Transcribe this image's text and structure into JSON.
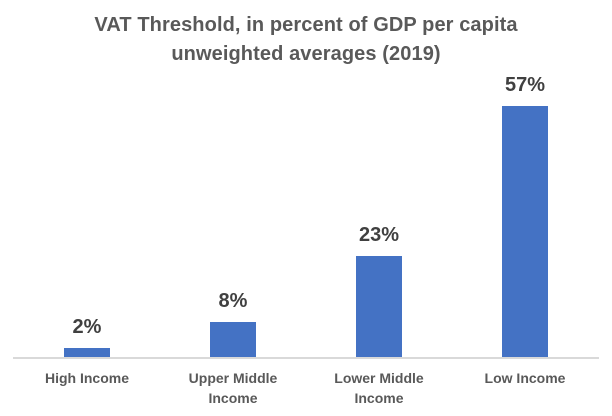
{
  "title": {
    "line1": "VAT Threshold, in percent of GDP per capita",
    "line2": "unweighted averages (2019)"
  },
  "chart_data": {
    "type": "bar",
    "title": "VAT Threshold, in percent of GDP per capita unweighted averages (2019)",
    "categories": [
      "High Income",
      "Upper Middle Income",
      "Lower Middle Income",
      "Low Income"
    ],
    "values": [
      2,
      8,
      23,
      57
    ],
    "value_labels": [
      "2%",
      "8%",
      "23%",
      "57%"
    ],
    "xlabel": "",
    "ylabel": "",
    "ylim": [
      0,
      62
    ],
    "grid": false,
    "legend": false,
    "y_axis_visible": false,
    "bar_color": "#4472C4",
    "baseline_color": "#D9D9D9",
    "title_color": "#595959",
    "data_label_color": "#404040",
    "category_label_color": "#595959"
  }
}
